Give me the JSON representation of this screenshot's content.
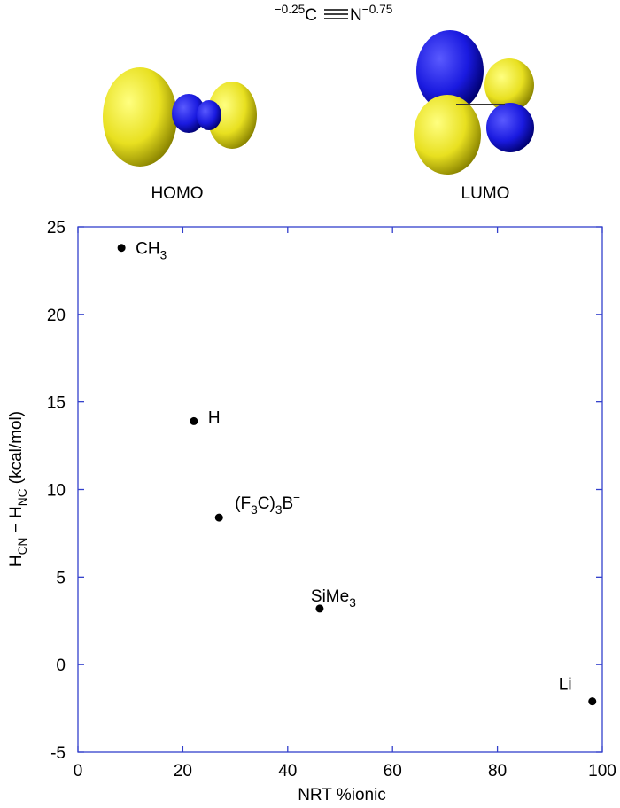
{
  "molecule": {
    "parts": [
      {
        "text": "−0.25",
        "sup": true
      },
      {
        "text": "C"
      },
      {
        "text": "N"
      },
      {
        "text": "−0.75",
        "sup": true
      }
    ]
  },
  "orbitals": [
    {
      "label": "HOMO"
    },
    {
      "label": "LUMO"
    }
  ],
  "chart_data": {
    "type": "scatter",
    "xlabel": "NRT %ionic",
    "ylabel": [
      {
        "text": "H"
      },
      {
        "text": "CN",
        "sub": true
      },
      {
        "text": " − H"
      },
      {
        "text": "NC",
        "sub": true
      },
      {
        "text": " (kcal/mol)"
      }
    ],
    "x": [
      8.3,
      22.1,
      26.9,
      46.1,
      98.1
    ],
    "values": [
      23.8,
      13.9,
      8.4,
      3.2,
      -2.1
    ],
    "point_labels": [
      [
        {
          "text": "CH"
        },
        {
          "text": "3",
          "sub": true
        }
      ],
      [
        {
          "text": "H"
        }
      ],
      [
        {
          "text": "(F"
        },
        {
          "text": "3",
          "sub": true
        },
        {
          "text": "C)"
        },
        {
          "text": "3",
          "sub": true
        },
        {
          "text": "B"
        },
        {
          "text": "−",
          "sup": true
        }
      ],
      [
        {
          "text": "SiMe"
        },
        {
          "text": "3",
          "sub": true
        }
      ],
      [
        {
          "text": "Li"
        }
      ]
    ],
    "color": "#000000",
    "frame_color": "#3340cc",
    "xlim": [
      0,
      100
    ],
    "ylim": [
      -5,
      25
    ],
    "xticks": [
      0,
      20,
      40,
      60,
      80,
      100
    ],
    "yticks": [
      -5,
      0,
      5,
      10,
      15,
      20,
      25
    ]
  }
}
